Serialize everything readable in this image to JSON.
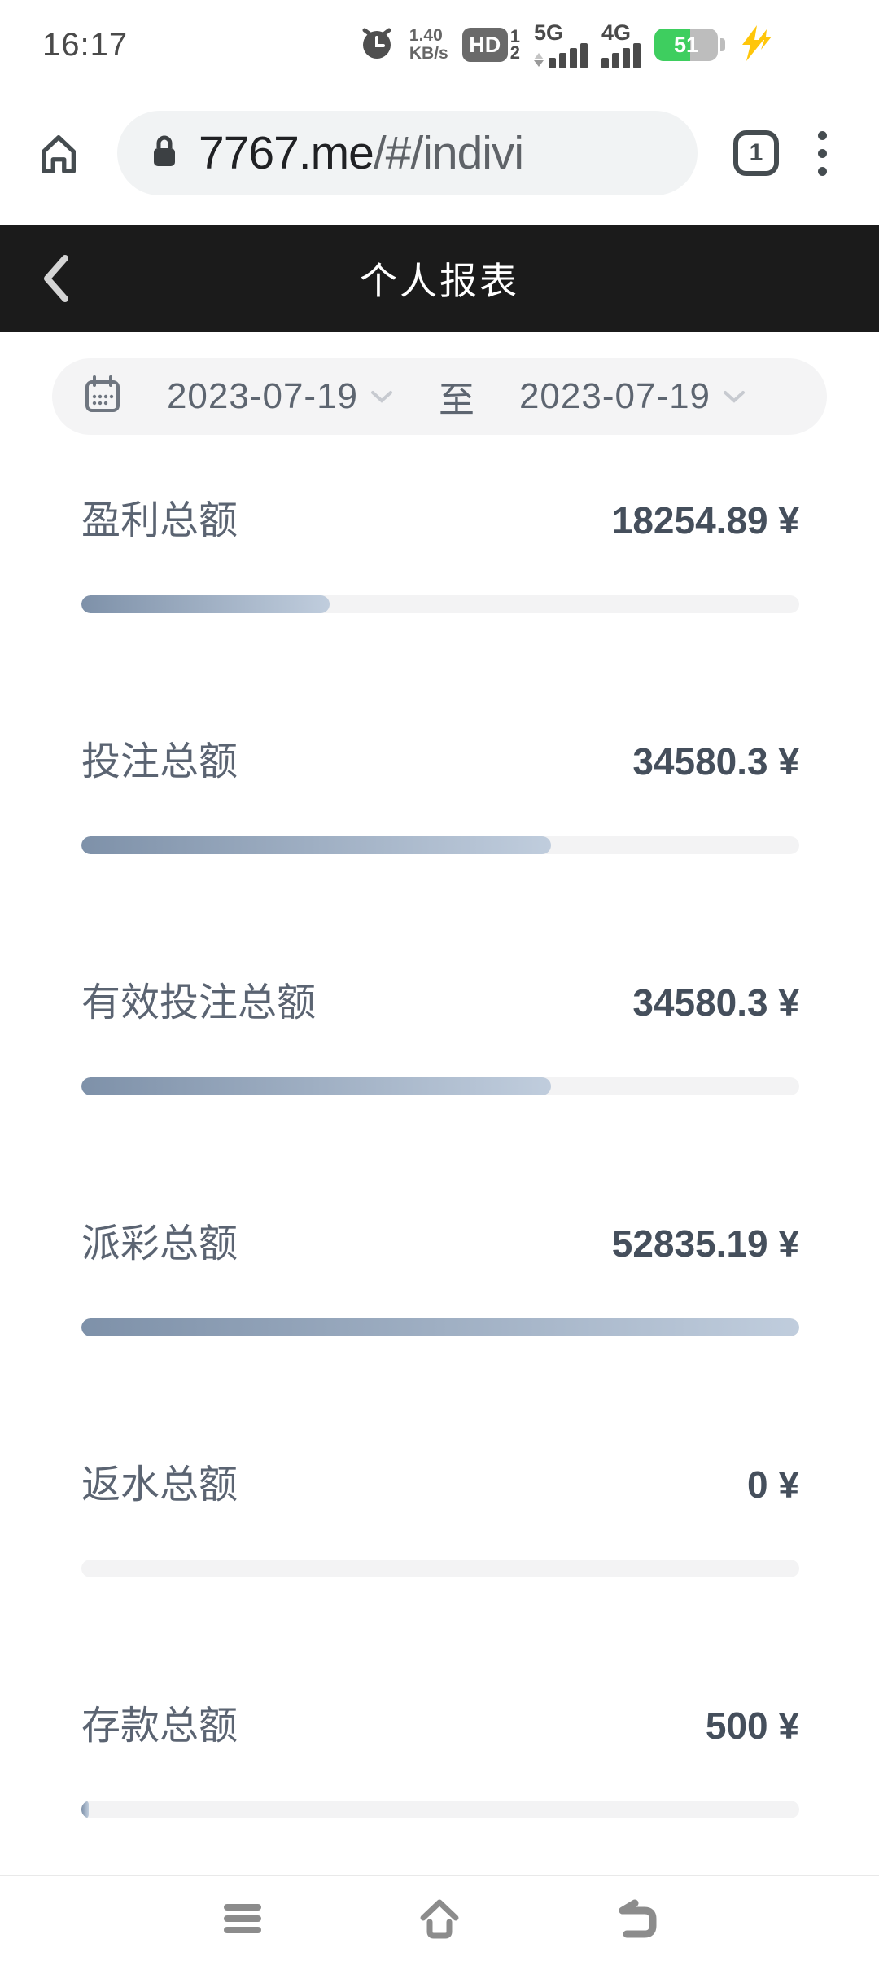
{
  "status_bar": {
    "time": "16:17",
    "net_speed_line1": "1.40",
    "net_speed_line2": "KB/s",
    "volte_label": "HD",
    "sim_slot_1": "1",
    "sim_slot_2": "2",
    "network_type_1": "5G",
    "network_type_2": "4G",
    "battery_level": "51"
  },
  "browser": {
    "url_domain": "7767.me",
    "url_path": "/#/indivi",
    "tab_count": "1"
  },
  "header": {
    "title": "个人报表"
  },
  "date_filter": {
    "start_date": "2023-07-19",
    "to_label": "至",
    "end_date": "2023-07-19"
  },
  "report": {
    "currency_suffix": "¥",
    "max_value": 52835.19,
    "stats": [
      {
        "label": "盈利总额",
        "value": "18254.89 ¥",
        "amount": 18254.89,
        "bar_percent": 34.6
      },
      {
        "label": "投注总额",
        "value": "34580.3 ¥",
        "amount": 34580.3,
        "bar_percent": 65.4
      },
      {
        "label": "有效投注总额",
        "value": "34580.3 ¥",
        "amount": 34580.3,
        "bar_percent": 65.4
      },
      {
        "label": "派彩总额",
        "value": "52835.19 ¥",
        "amount": 52835.19,
        "bar_percent": 100
      },
      {
        "label": "返水总额",
        "value": "0 ¥",
        "amount": 0,
        "bar_percent": 0
      },
      {
        "label": "存款总额",
        "value": "500 ¥",
        "amount": 500,
        "bar_percent": 1
      }
    ]
  },
  "colors": {
    "header_bg": "#1b1b1b",
    "bar_gradient_start": "#7e91a9",
    "bar_gradient_end": "#c0cddd",
    "bar_track": "#f3f3f4",
    "battery_green": "#3ece5f",
    "charging_bolt": "#ffc60a",
    "pill_bg": "#f1f3f4"
  }
}
